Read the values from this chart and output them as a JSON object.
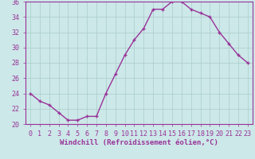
{
  "x": [
    0,
    1,
    2,
    3,
    4,
    5,
    6,
    7,
    8,
    9,
    10,
    11,
    12,
    13,
    14,
    15,
    16,
    17,
    18,
    19,
    20,
    21,
    22,
    23
  ],
  "y": [
    24,
    23,
    22.5,
    21.5,
    20.5,
    20.5,
    21,
    21,
    24,
    26.5,
    29,
    31,
    32.5,
    35,
    35,
    36,
    36,
    35,
    34.5,
    34,
    32,
    30.5,
    29,
    28
  ],
  "line_color": "#993399",
  "marker": "+",
  "bg_color": "#cce8e8",
  "grid_color": "#aacccc",
  "xlabel": "Windchill (Refroidissement éolien,°C)",
  "ylim": [
    20,
    36
  ],
  "xlim": [
    -0.5,
    23.5
  ],
  "yticks": [
    20,
    22,
    24,
    26,
    28,
    30,
    32,
    34,
    36
  ],
  "xticks": [
    0,
    1,
    2,
    3,
    4,
    5,
    6,
    7,
    8,
    9,
    10,
    11,
    12,
    13,
    14,
    15,
    16,
    17,
    18,
    19,
    20,
    21,
    22,
    23
  ],
  "label_fontsize": 6.5,
  "tick_fontsize": 6,
  "line_width": 1.0,
  "marker_size": 3.5,
  "marker_edge_width": 1.0
}
